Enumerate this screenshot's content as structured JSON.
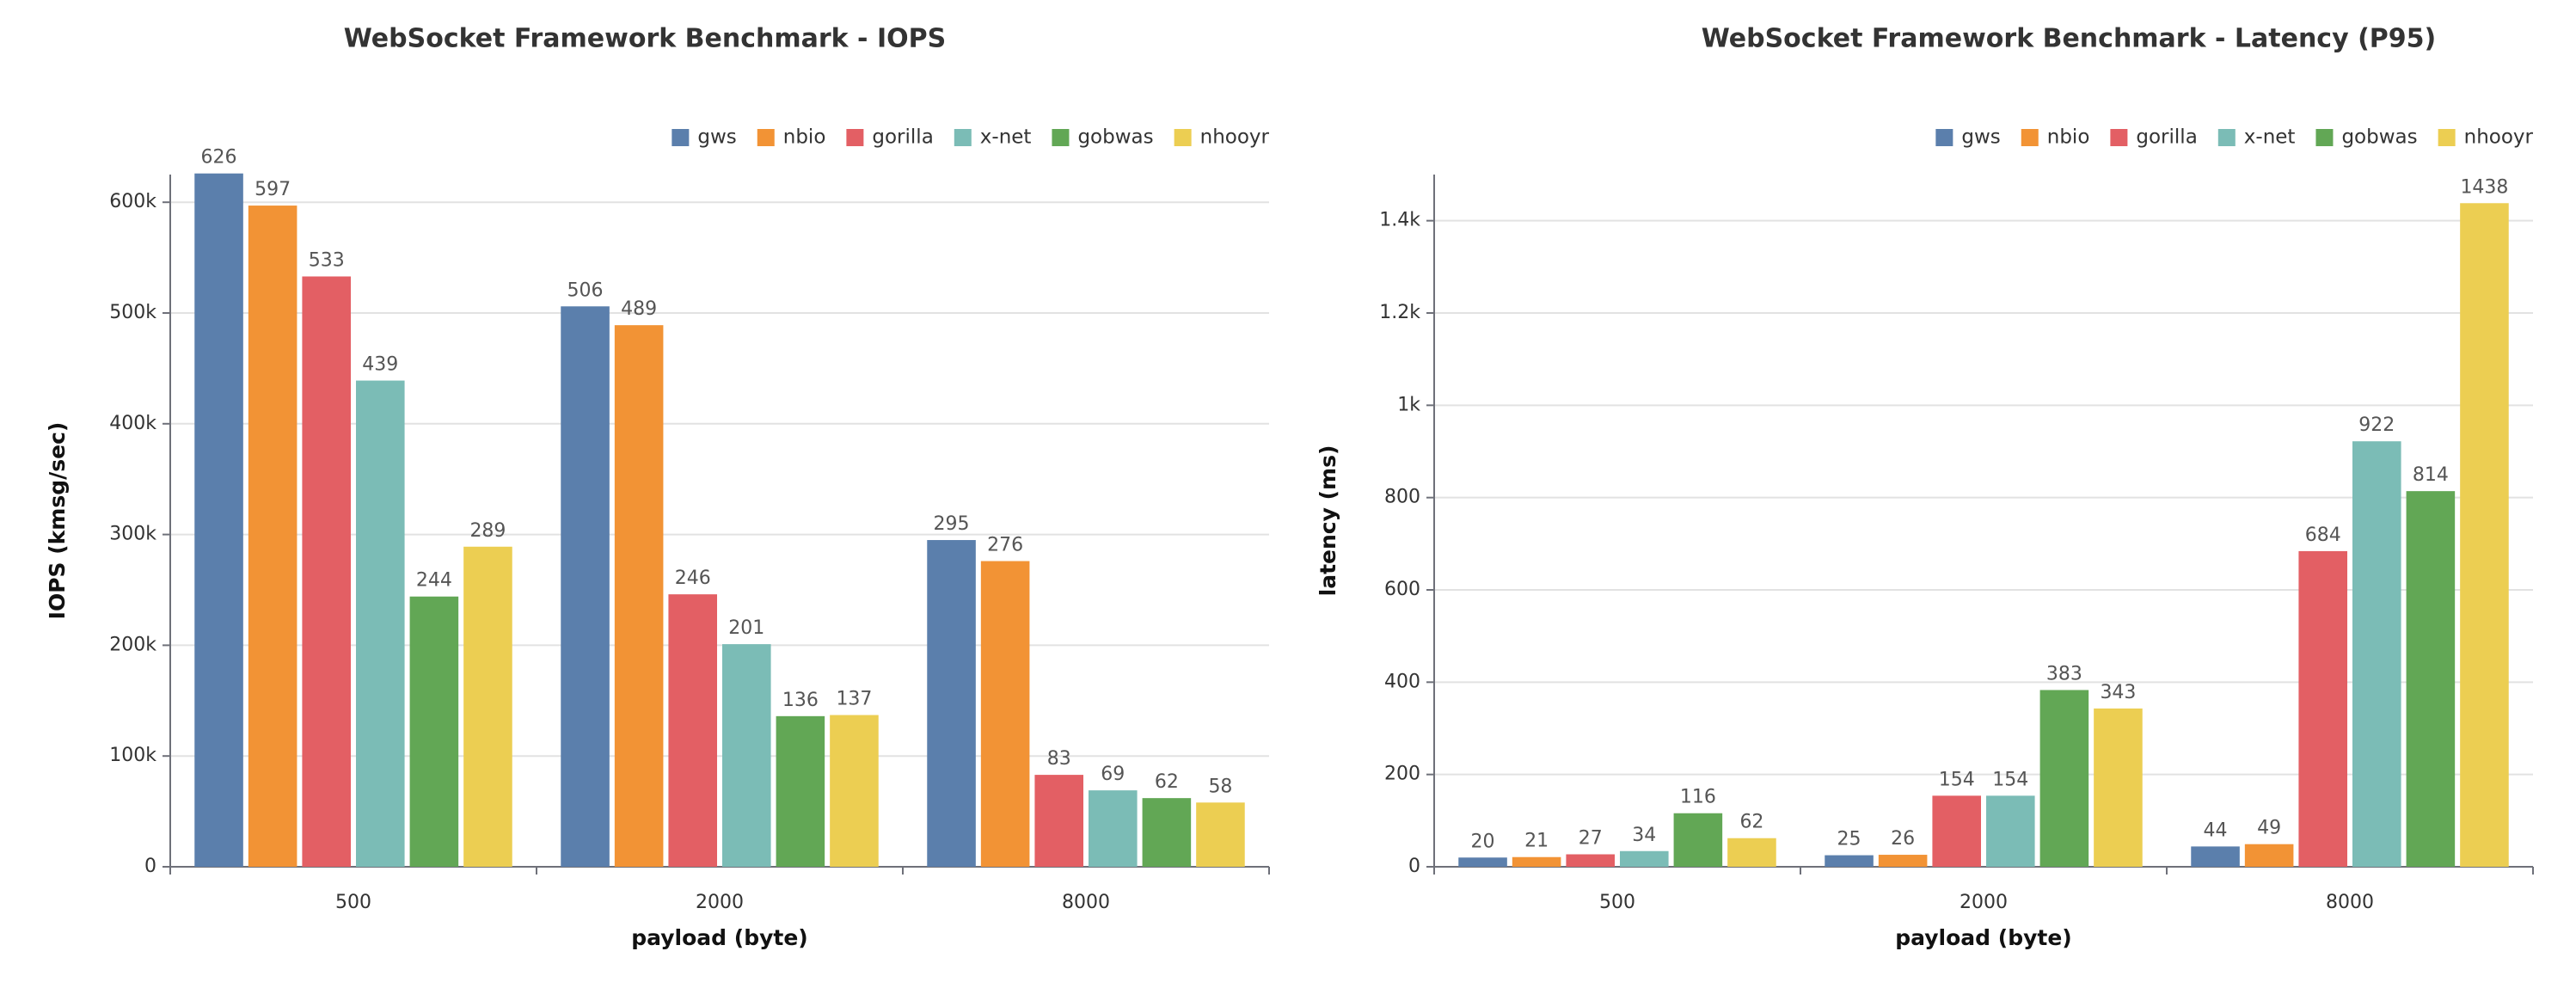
{
  "charts": [
    {
      "type": "bar",
      "title": "WebSocket Framework Benchmark - IOPS",
      "xlabel": "payload (byte)",
      "ylabel": "IOPS (kmsg/sec)",
      "categories": [
        "500",
        "2000",
        "8000"
      ],
      "ylim": [
        0,
        625000
      ],
      "yticks": [
        {
          "value": 0,
          "label": "0"
        },
        {
          "value": 100000,
          "label": "100k"
        },
        {
          "value": 200000,
          "label": "200k"
        },
        {
          "value": 300000,
          "label": "300k"
        },
        {
          "value": 400000,
          "label": "400k"
        },
        {
          "value": 500000,
          "label": "500k"
        },
        {
          "value": 600000,
          "label": "600k"
        }
      ],
      "legend_position": "top-right",
      "series": [
        {
          "name": "gws",
          "color": "#5b7fac",
          "values": [
            626000,
            506000,
            295000
          ],
          "labels": [
            "626",
            "506",
            "295"
          ]
        },
        {
          "name": "nbio",
          "color": "#f29335",
          "values": [
            597000,
            489000,
            276000
          ],
          "labels": [
            "597",
            "489",
            "276"
          ]
        },
        {
          "name": "gorilla",
          "color": "#e35f64",
          "values": [
            533000,
            246000,
            83000
          ],
          "labels": [
            "533",
            "246",
            "83"
          ]
        },
        {
          "name": "x-net",
          "color": "#7bbcb6",
          "values": [
            439000,
            201000,
            69000
          ],
          "labels": [
            "439",
            "201",
            "69"
          ]
        },
        {
          "name": "gobwas",
          "color": "#62a755",
          "values": [
            244000,
            136000,
            62000
          ],
          "labels": [
            "244",
            "136",
            "62"
          ]
        },
        {
          "name": "nhooyr",
          "color": "#ecce52",
          "values": [
            289000,
            137000,
            58000
          ],
          "labels": [
            "289",
            "137",
            "58"
          ]
        }
      ]
    },
    {
      "type": "bar",
      "title": "WebSocket Framework Benchmark - Latency (P95)",
      "xlabel": "payload (byte)",
      "ylabel": "latency (ms)",
      "categories": [
        "500",
        "2000",
        "8000"
      ],
      "ylim": [
        0,
        1500
      ],
      "yticks": [
        {
          "value": 0,
          "label": "0"
        },
        {
          "value": 200,
          "label": "200"
        },
        {
          "value": 400,
          "label": "400"
        },
        {
          "value": 600,
          "label": "600"
        },
        {
          "value": 800,
          "label": "800"
        },
        {
          "value": 1000,
          "label": "1k"
        },
        {
          "value": 1200,
          "label": "1.2k"
        },
        {
          "value": 1400,
          "label": "1.4k"
        }
      ],
      "legend_position": "top-right",
      "series": [
        {
          "name": "gws",
          "color": "#5b7fac",
          "values": [
            20,
            25,
            44
          ],
          "labels": [
            "20",
            "25",
            "44"
          ]
        },
        {
          "name": "nbio",
          "color": "#f29335",
          "values": [
            21,
            26,
            49
          ],
          "labels": [
            "21",
            "26",
            "49"
          ]
        },
        {
          "name": "gorilla",
          "color": "#e35f64",
          "values": [
            27,
            154,
            684
          ],
          "labels": [
            "27",
            "154",
            "684"
          ]
        },
        {
          "name": "x-net",
          "color": "#7bbcb6",
          "values": [
            34,
            154,
            922
          ],
          "labels": [
            "34",
            "154",
            "922"
          ]
        },
        {
          "name": "gobwas",
          "color": "#62a755",
          "values": [
            116,
            383,
            814
          ],
          "labels": [
            "116",
            "383",
            "814"
          ]
        },
        {
          "name": "nhooyr",
          "color": "#ecce52",
          "values": [
            62,
            343,
            1438
          ],
          "labels": [
            "62",
            "343",
            "1438"
          ]
        }
      ]
    }
  ]
}
